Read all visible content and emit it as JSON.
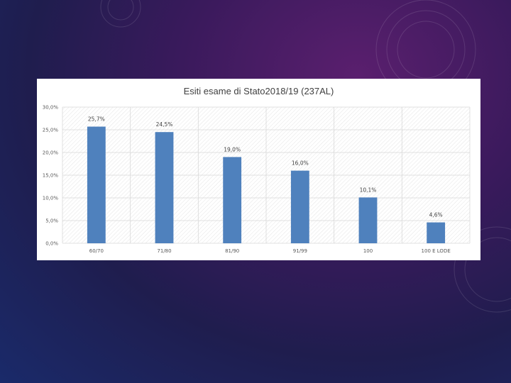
{
  "chart_data": {
    "type": "bar",
    "title": "Esiti esame di Stato2018/19 (237AL)",
    "categories": [
      "60/70",
      "71/80",
      "81/90",
      "91/99",
      "100",
      "100 E LODE"
    ],
    "values": [
      25.7,
      24.5,
      19.0,
      16.0,
      10.1,
      4.6
    ],
    "data_labels": [
      "25,7%",
      "24,5%",
      "19,0%",
      "16,0%",
      "10,1%",
      "4,6%"
    ],
    "y_ticks": [
      0,
      5,
      10,
      15,
      20,
      25,
      30
    ],
    "y_tick_labels": [
      "0,0%",
      "5,0%",
      "10,0%",
      "15,0%",
      "20,0%",
      "25,0%",
      "30,0%"
    ],
    "ylim": [
      0,
      30
    ],
    "xlabel": "",
    "ylabel": "",
    "grid": true,
    "bar_color": "#4f81bd",
    "grid_color": "#d9d9d9"
  }
}
